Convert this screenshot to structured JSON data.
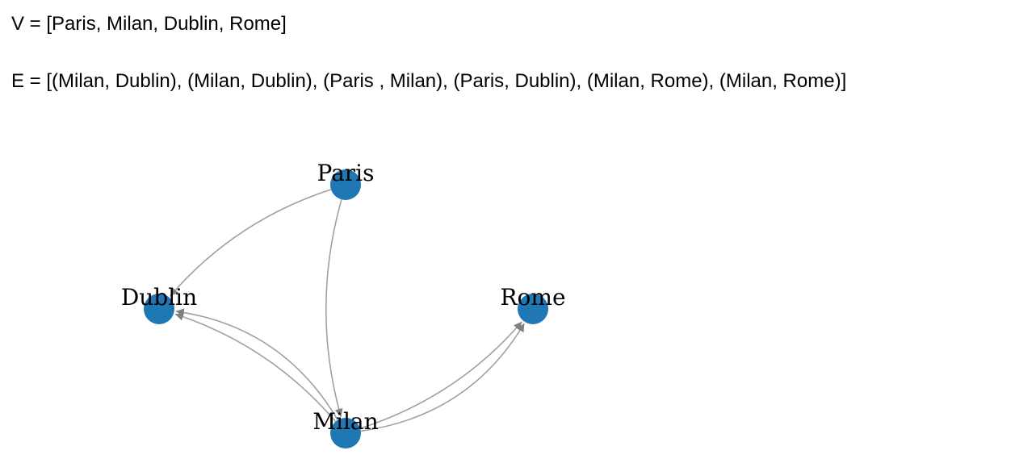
{
  "vertex_line": "V = [Paris, Milan, Dublin, Rome]",
  "edge_line": "E = [(Milan, Dublin), (Milan, Dublin), (Paris , Milan), (Paris, Dublin), (Milan, Rome), (Milan, Rome)]",
  "graph": {
    "directed": true,
    "node_color": "#1f77b4",
    "edge_color": "#a0a0a0",
    "arrow_color": "#808080",
    "nodes": [
      {
        "id": "Paris",
        "label": "Paris"
      },
      {
        "id": "Dublin",
        "label": "Dublin"
      },
      {
        "id": "Rome",
        "label": "Rome"
      },
      {
        "id": "Milan",
        "label": "Milan"
      }
    ],
    "edges": [
      {
        "source": "Milan",
        "target": "Dublin"
      },
      {
        "source": "Milan",
        "target": "Dublin"
      },
      {
        "source": "Paris",
        "target": "Milan"
      },
      {
        "source": "Paris",
        "target": "Dublin"
      },
      {
        "source": "Milan",
        "target": "Rome"
      },
      {
        "source": "Milan",
        "target": "Rome"
      }
    ]
  }
}
